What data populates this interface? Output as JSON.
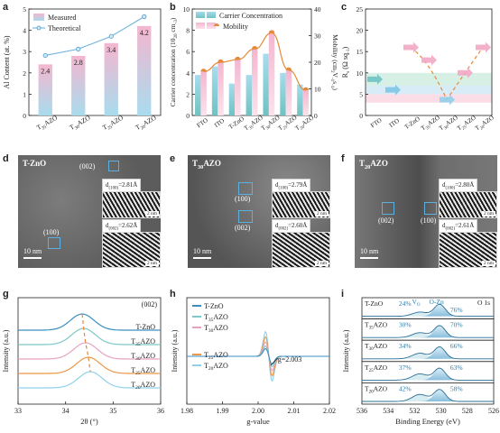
{
  "panel_labels": {
    "a": "a",
    "b": "b",
    "c": "c",
    "d": "d",
    "e": "e",
    "f": "f",
    "g": "g",
    "h": "h",
    "i": "i"
  },
  "colors": {
    "pink": "#f4b6cf",
    "blue": "#a8dced",
    "teal": "#6fc2c2",
    "orange": "#e58a3a",
    "dark_blue": "#2f7fa9"
  },
  "chart_data": [
    {
      "id": "a",
      "type": "bar",
      "categories": [
        "T$35$AZO",
        "T$30$AZO",
        "T$25$AZO",
        "T$20$AZO"
      ],
      "series": [
        {
          "name": "Measured",
          "values": [
            2.4,
            2.8,
            3.4,
            4.2
          ]
        },
        {
          "name": "Theoretical",
          "values": [
            2.82,
            3.12,
            3.72,
            4.64
          ]
        }
      ],
      "value_labels": [
        "2.4",
        "2.8",
        "3.4",
        "4.2"
      ],
      "ylabel": "Al Content (at. %)",
      "ylim": [
        0,
        5
      ],
      "yticks": [
        0,
        1,
        2,
        3,
        4,
        5
      ],
      "legend": "top-left"
    },
    {
      "id": "b",
      "type": "bar",
      "categories": [
        "FTO",
        "ITO",
        "T-ZnO",
        "T$35$AZO",
        "T$30$AZO",
        "T$25$AZO",
        "T$20$AZO"
      ],
      "series": [
        {
          "name": "Carrier Concentration",
          "values": [
            3.8,
            4.6,
            3.0,
            3.8,
            5.8,
            4.0,
            2.9
          ]
        },
        {
          "name": "Mobility",
          "values": [
            16.5,
            20.0,
            21.0,
            25.0,
            31.0,
            17.0,
            9.5
          ]
        }
      ],
      "ylabel": "Carrier concentration (10$20$ cm$-3$)",
      "ylabel_right": "Mobility (cm$2$V$-1$s$-1$)",
      "ylim": [
        0,
        10
      ],
      "yticks": [
        0,
        2,
        4,
        6,
        8,
        10
      ],
      "ylim_right": [
        0,
        40
      ],
      "yticks_right": [
        0,
        10,
        20,
        30,
        40
      ],
      "legend": "top"
    },
    {
      "id": "c",
      "type": "scatter",
      "categories": [
        "FTO",
        "ITO",
        "T-ZnO",
        "T$35$AZO",
        "T$30$AZO",
        "T$25$AZO",
        "T$20$AZO"
      ],
      "values": [
        8.5,
        6,
        16,
        13,
        3.7,
        10,
        16
      ],
      "ylabel": "R$s$ (Ω sq$-1$)",
      "ylim": [
        0,
        25
      ],
      "yticks": [
        0,
        5,
        10,
        15,
        20,
        25
      ]
    },
    {
      "id": "g",
      "type": "line",
      "series_names": [
        "T-ZnO",
        "T$35$AZO",
        "T$30$AZO",
        "T$25$AZO",
        "T$20$AZO"
      ],
      "peaks": [
        34.35,
        34.38,
        34.42,
        34.48,
        34.52
      ],
      "peak_label": "(002)",
      "xlabel": "2θ (°)",
      "ylabel": "Intensity (a.u.)",
      "xlim": [
        33,
        36
      ],
      "xticks": [
        33,
        34,
        35,
        36
      ]
    },
    {
      "id": "h",
      "type": "line",
      "series_names": [
        "T-ZnO",
        "T$35$AZO",
        "T$30$AZO",
        "T$25$AZO",
        "T$20$AZO"
      ],
      "g_value": 2.003,
      "annotation": "g=2.003",
      "xlabel": "g-value",
      "ylabel": "Intensity (a.u.)",
      "xlim": [
        1.98,
        2.02
      ],
      "xticks": [
        1.98,
        1.99,
        2.0,
        2.01,
        2.02
      ]
    },
    {
      "id": "i",
      "type": "line",
      "series_names": [
        "T-ZnO",
        "T$35$AZO",
        "T$30$AZO",
        "T$25$AZO",
        "T$20$AZO"
      ],
      "vo_percent": [
        "24%",
        "30%",
        "34%",
        "37%",
        "42%"
      ],
      "ozn_percent": [
        "76%",
        "70%",
        "66%",
        "63%",
        "58%"
      ],
      "vo_label": "V$O$",
      "ozn_label": "O-Zn",
      "core_label": "O 1s",
      "xlabel": "Binding Energy (eV)",
      "ylabel": "Intensity (a.u.)",
      "xlim": [
        536,
        526
      ],
      "xticks": [
        536,
        534,
        532,
        530,
        528,
        526
      ]
    }
  ],
  "tem": {
    "d": {
      "title": "T-ZnO",
      "plane_top": "(002)",
      "plane_bottom": "(100)",
      "d1": "d$(100)$=2.81Å",
      "d2": "d$(002)$=2.62Å",
      "scale": "10 nm",
      "inset_scale": "2 nm"
    },
    "e": {
      "title": "T$30$AZO",
      "plane_top": "(100)",
      "plane_bottom": "(002)",
      "d1": "d$(100)$=2.79Å",
      "d2": "d$(002)$=2.60Å",
      "scale": "10 nm",
      "inset_scale": "2 nm"
    },
    "f": {
      "title": "T$20$AZO",
      "plane_left": "(002)",
      "plane_right": "(100)",
      "d1": "d$(100)$=2.80Å",
      "d2": "d$(002)$=2.61Å",
      "scale": "10 nm",
      "inset_scale": "2 nm"
    }
  }
}
